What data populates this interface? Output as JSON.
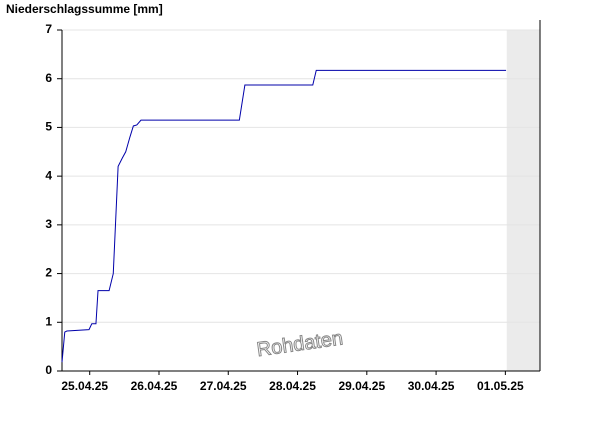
{
  "chart_data": {
    "type": "line",
    "title": "Niederschlagssumme [mm]",
    "annotation": "Rohdaten",
    "series": [
      {
        "color": "#0000aa",
        "x": [
          0.1,
          0.14,
          0.17,
          0.49,
          0.53,
          0.59,
          0.62,
          0.78,
          0.84,
          0.91,
          0.97,
          1.02,
          1.08,
          1.13,
          1.18,
          1.24,
          2.66,
          2.74,
          3.72,
          3.77,
          6.51
        ],
        "values": [
          0.18,
          0.8,
          0.82,
          0.85,
          0.97,
          0.97,
          1.65,
          1.65,
          2.0,
          4.2,
          4.37,
          4.5,
          4.8,
          5.03,
          5.05,
          5.15,
          5.15,
          5.87,
          5.87,
          6.17,
          6.17
        ]
      }
    ],
    "xlim": [
      0.1,
      7
    ],
    "xticks": [
      {
        "value": 0.5,
        "label": "25.04.25"
      },
      {
        "value": 1.5,
        "label": "26.04.25"
      },
      {
        "value": 2.5,
        "label": "27.04.25"
      },
      {
        "value": 3.5,
        "label": "28.04.25"
      },
      {
        "value": 4.5,
        "label": "29.04.25"
      },
      {
        "value": 5.5,
        "label": "30.04.25"
      },
      {
        "value": 6.5,
        "label": "01.05.25"
      }
    ],
    "ylim": [
      0,
      7
    ],
    "yticks": [
      0,
      1,
      2,
      3,
      4,
      5,
      6,
      7
    ],
    "grid": true,
    "shaded_xrange": [
      6.52,
      7
    ],
    "shade_color": "#ebebeb"
  }
}
